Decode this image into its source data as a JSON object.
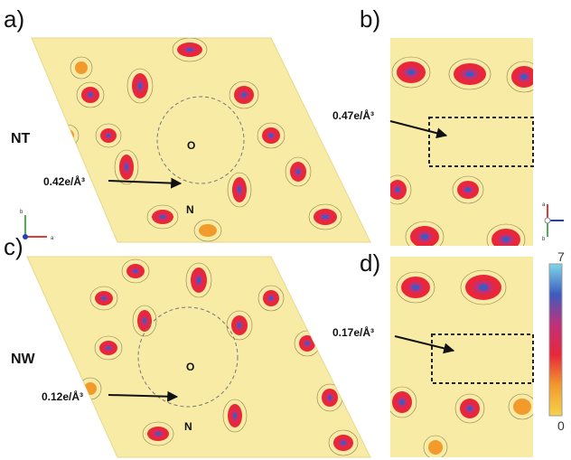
{
  "panels": [
    {
      "label": "a)",
      "sample": "NT",
      "annotation": "0.42e/Å³",
      "atoms": [
        "O",
        "N"
      ]
    },
    {
      "label": "b)",
      "annotation": "0.47e/Å³"
    },
    {
      "label": "c)",
      "sample": "NW",
      "annotation": "0.12e/Å³",
      "atoms": [
        "O",
        "N"
      ]
    },
    {
      "label": "d)",
      "annotation": "0.17e/Å³"
    }
  ],
  "axes_a": [
    "b",
    "a"
  ],
  "axes_b": [
    "a",
    "b"
  ],
  "colorbar": {
    "max": "7",
    "min": "0"
  }
}
